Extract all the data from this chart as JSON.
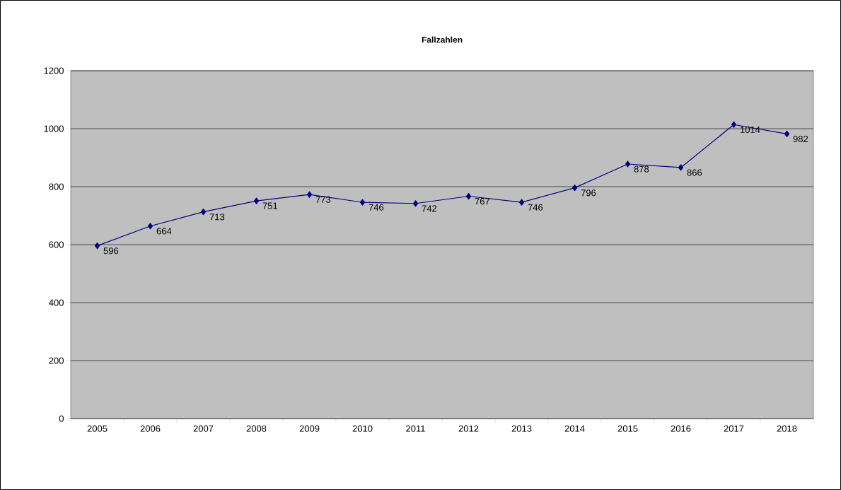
{
  "chart_data": {
    "type": "line",
    "title": "Fallzahlen",
    "categories": [
      "2005",
      "2006",
      "2007",
      "2008",
      "2009",
      "2010",
      "2011",
      "2012",
      "2013",
      "2014",
      "2015",
      "2016",
      "2017",
      "2018"
    ],
    "values": [
      596,
      664,
      713,
      751,
      773,
      746,
      742,
      767,
      746,
      796,
      878,
      866,
      1014,
      982
    ],
    "color": "#000080",
    "marker": "diamond",
    "line_style": "solid",
    "data_labels": true,
    "ylim": [
      0,
      1200
    ],
    "yticks": [
      0,
      200,
      400,
      600,
      800,
      1000,
      1200
    ],
    "grid": "y"
  }
}
